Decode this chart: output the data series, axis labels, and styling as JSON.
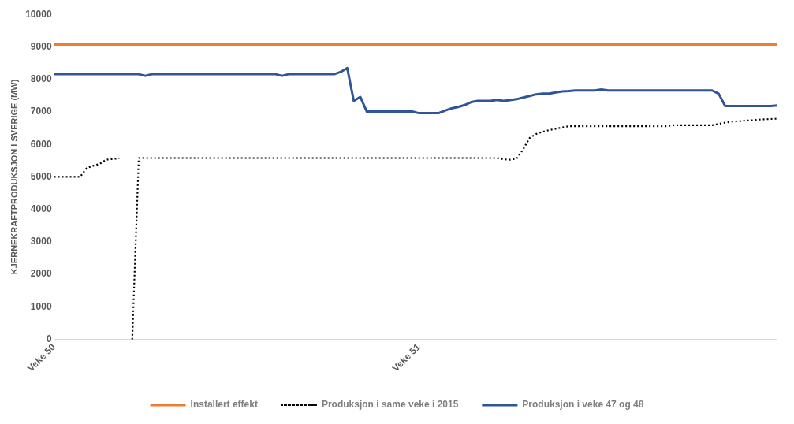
{
  "chart_data": {
    "type": "line",
    "ylabel": "KJERNEKRAFTPRODUKSJON I SVERIGE (MW)",
    "categories": [
      "Veke 50",
      null,
      null,
      null,
      null,
      null,
      null,
      null,
      null,
      null,
      null,
      null,
      null,
      null,
      null,
      null,
      null,
      null,
      null,
      null,
      null,
      null,
      null,
      null,
      null,
      null,
      null,
      null,
      null,
      null,
      null,
      null,
      null,
      null,
      null,
      null,
      null,
      null,
      null,
      null,
      null,
      null,
      null,
      null,
      null,
      null,
      null,
      null,
      null,
      null,
      null,
      null,
      null,
      null,
      null,
      null,
      "Veke 51",
      null,
      null,
      null,
      null,
      null,
      null,
      null,
      null,
      null,
      null,
      null,
      null,
      null,
      null,
      null,
      null,
      null,
      null,
      null,
      null,
      null,
      null,
      null,
      null,
      null,
      null,
      null,
      null,
      null,
      null,
      null,
      null,
      null,
      null,
      null,
      null,
      null,
      null,
      null,
      null,
      null,
      null,
      null,
      null,
      null,
      null,
      null,
      null,
      null,
      null,
      null,
      null,
      null,
      null,
      null
    ],
    "ylim": [
      0,
      10000
    ],
    "yticks": [
      0,
      1000,
      2000,
      3000,
      4000,
      5000,
      6000,
      7000,
      8000,
      9000,
      10000
    ],
    "grid": "x",
    "legend": "bottom",
    "marker": "none",
    "series": [
      {
        "name": "Installert effekt",
        "color": "#ed7d31",
        "line_style": "solid",
        "values": [
          9070,
          9070,
          9070,
          9070,
          9070,
          9070,
          9070,
          9070,
          9070,
          9070,
          9070,
          9070,
          9070,
          9070,
          9070,
          9070,
          9070,
          9070,
          9070,
          9070,
          9070,
          9070,
          9070,
          9070,
          9070,
          9070,
          9070,
          9070,
          9070,
          9070,
          9070,
          9070,
          9070,
          9070,
          9070,
          9070,
          9070,
          9070,
          9070,
          9070,
          9070,
          9070,
          9070,
          9070,
          9070,
          9070,
          9070,
          9070,
          9070,
          9070,
          9070,
          9070,
          9070,
          9070,
          9070,
          9070,
          9070,
          9070,
          9070,
          9070,
          9070,
          9070,
          9070,
          9070,
          9070,
          9070,
          9070,
          9070,
          9070,
          9070,
          9070,
          9070,
          9070,
          9070,
          9070,
          9070,
          9070,
          9070,
          9070,
          9070,
          9070,
          9070,
          9070,
          9070,
          9070,
          9070,
          9070,
          9070,
          9070,
          9070,
          9070,
          9070,
          9070,
          9070,
          9070,
          9070,
          9070,
          9070,
          9070,
          9070,
          9070,
          9070,
          9070,
          9070,
          9070,
          9070,
          9070,
          9070,
          9070,
          9070,
          9070,
          9070
        ]
      },
      {
        "name": "Produksjon i same veke i 2015",
        "color": "#000000",
        "line_style": "dotted",
        "values": [
          5000,
          5000,
          5000,
          5000,
          5000,
          5270,
          5340,
          5400,
          5530,
          5550,
          5570,
          null,
          0,
          5580,
          5580,
          5580,
          5580,
          5580,
          5580,
          5580,
          5580,
          5580,
          5580,
          5580,
          5580,
          5580,
          5580,
          5580,
          5580,
          5580,
          5580,
          5580,
          5580,
          5580,
          5580,
          5580,
          5580,
          5580,
          5580,
          5580,
          5580,
          5580,
          5580,
          5580,
          5580,
          5580,
          5580,
          5580,
          5580,
          5580,
          5580,
          5580,
          5580,
          5580,
          5580,
          5580,
          5580,
          5580,
          5580,
          5580,
          5580,
          5580,
          5580,
          5580,
          5580,
          5580,
          5580,
          5580,
          5580,
          5540,
          5530,
          5560,
          5850,
          6200,
          6320,
          6390,
          6440,
          6480,
          6520,
          6560,
          6560,
          6560,
          6560,
          6560,
          6560,
          6560,
          6560,
          6560,
          6560,
          6560,
          6560,
          6560,
          6560,
          6560,
          6560,
          6590,
          6590,
          6590,
          6590,
          6590,
          6590,
          6590,
          6630,
          6670,
          6700,
          6710,
          6730,
          6740,
          6760,
          6770,
          6780,
          6790
        ]
      },
      {
        "name": "Produksjon i veke 47 og 48",
        "color": "#2f5597",
        "line_style": "solid",
        "values": [
          8160,
          8160,
          8160,
          8160,
          8160,
          8160,
          8160,
          8160,
          8160,
          8160,
          8160,
          8160,
          8160,
          8160,
          8110,
          8160,
          8160,
          8160,
          8160,
          8160,
          8160,
          8160,
          8160,
          8160,
          8160,
          8160,
          8160,
          8160,
          8160,
          8160,
          8160,
          8160,
          8160,
          8160,
          8160,
          8110,
          8160,
          8160,
          8160,
          8160,
          8160,
          8160,
          8160,
          8160,
          8230,
          8350,
          7340,
          7460,
          7010,
          7010,
          7010,
          7010,
          7010,
          7010,
          7010,
          7010,
          6960,
          6960,
          6960,
          6960,
          7040,
          7110,
          7150,
          7210,
          7300,
          7340,
          7340,
          7340,
          7370,
          7340,
          7360,
          7390,
          7440,
          7490,
          7540,
          7560,
          7560,
          7600,
          7630,
          7640,
          7660,
          7660,
          7660,
          7660,
          7690,
          7660,
          7660,
          7660,
          7660,
          7660,
          7660,
          7660,
          7660,
          7660,
          7660,
          7660,
          7660,
          7660,
          7660,
          7660,
          7660,
          7660,
          7560,
          7180,
          7180,
          7180,
          7180,
          7180,
          7180,
          7180,
          7180,
          7200
        ]
      }
    ]
  }
}
